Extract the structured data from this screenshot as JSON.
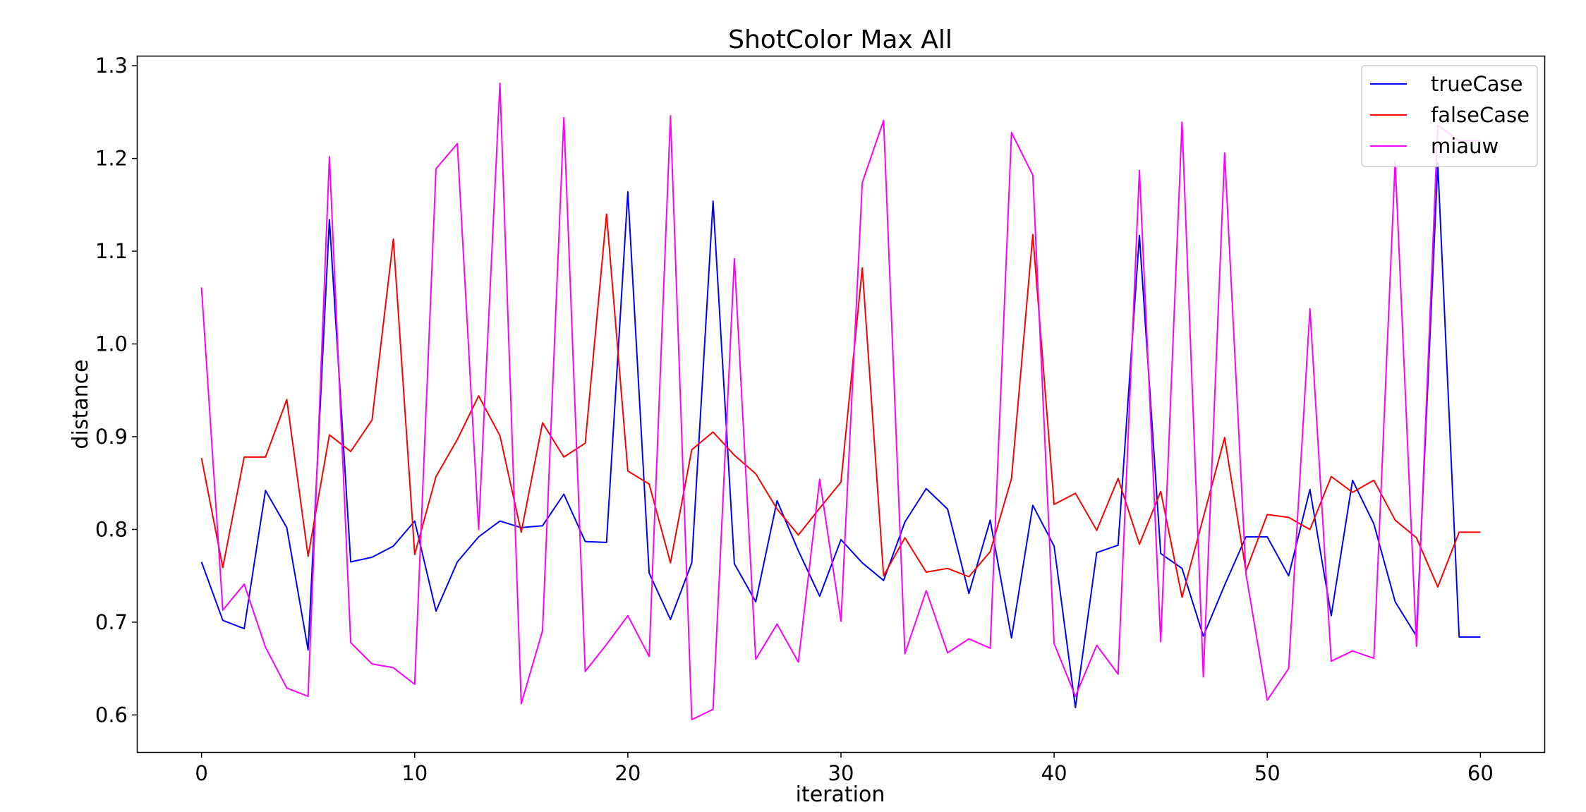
{
  "chart_data": {
    "type": "line",
    "title": "ShotColor Max All",
    "xlabel": "iteration",
    "ylabel": "distance",
    "xlim": [
      -3,
      63
    ],
    "ylim": [
      0.56,
      1.31
    ],
    "xticks": [
      0,
      10,
      20,
      30,
      40,
      50,
      60
    ],
    "yticks": [
      0.6,
      0.7,
      0.8,
      0.9,
      1.0,
      1.1,
      1.2,
      1.3
    ],
    "xtick_labels": [
      "0",
      "10",
      "20",
      "30",
      "40",
      "50",
      "60"
    ],
    "ytick_labels": [
      "0.6",
      "0.7",
      "0.8",
      "0.9",
      "1.0",
      "1.1",
      "1.2",
      "1.3"
    ],
    "grid": false,
    "legend_position": "top-right",
    "x": [
      0,
      1,
      2,
      3,
      4,
      5,
      6,
      7,
      8,
      9,
      10,
      11,
      12,
      13,
      14,
      15,
      16,
      17,
      18,
      19,
      20,
      21,
      22,
      23,
      24,
      25,
      26,
      27,
      28,
      29,
      30,
      31,
      32,
      33,
      34,
      35,
      36,
      37,
      38,
      39,
      40,
      41,
      42,
      43,
      44,
      45,
      46,
      47,
      48,
      49,
      50,
      51,
      52,
      53,
      54,
      55,
      56,
      57,
      58,
      59,
      60
    ],
    "series": [
      {
        "name": "trueCase",
        "color": "#0000ff",
        "values": [
          0.765,
          0.702,
          0.693,
          0.842,
          0.802,
          0.67,
          1.134,
          0.765,
          0.77,
          0.782,
          0.809,
          0.712,
          0.765,
          0.792,
          0.809,
          0.802,
          0.804,
          0.838,
          0.787,
          0.786,
          1.164,
          0.753,
          0.703,
          0.764,
          1.154,
          0.763,
          0.722,
          0.831,
          0.777,
          0.728,
          0.789,
          0.764,
          0.745,
          0.808,
          0.844,
          0.822,
          0.731,
          0.81,
          0.683,
          0.826,
          0.782,
          0.608,
          0.775,
          0.783,
          1.117,
          0.774,
          0.758,
          0.685,
          0.74,
          0.792,
          0.792,
          0.75,
          0.843,
          0.707,
          0.853,
          0.806,
          0.722,
          0.685,
          1.195,
          0.684,
          0.684
        ]
      },
      {
        "name": "falseCase",
        "color": "#ff0000",
        "values": [
          0.877,
          0.759,
          0.878,
          0.878,
          0.94,
          0.771,
          0.902,
          0.884,
          0.918,
          1.113,
          0.773,
          0.857,
          0.897,
          0.944,
          0.901,
          0.797,
          0.915,
          0.878,
          0.893,
          1.14,
          0.863,
          0.849,
          0.764,
          0.886,
          0.905,
          0.88,
          0.86,
          0.822,
          0.794,
          0.823,
          0.851,
          1.082,
          0.75,
          0.791,
          0.754,
          0.758,
          0.749,
          0.776,
          0.855,
          1.118,
          0.827,
          0.839,
          0.799,
          0.855,
          0.784,
          0.841,
          0.727,
          0.813,
          0.899,
          0.755,
          0.816,
          0.813,
          0.8,
          0.857,
          0.84,
          0.853,
          0.81,
          0.791,
          0.738,
          0.797,
          0.797
        ]
      },
      {
        "name": "miauw",
        "color": "#ff00ff",
        "values": [
          1.061,
          0.713,
          0.741,
          0.673,
          0.629,
          0.62,
          1.202,
          0.678,
          0.655,
          0.651,
          0.633,
          1.189,
          1.216,
          0.8,
          1.281,
          0.612,
          0.691,
          1.244,
          0.647,
          0.676,
          0.707,
          0.663,
          1.246,
          0.595,
          0.606,
          1.092,
          0.66,
          0.698,
          0.657,
          0.854,
          0.701,
          1.174,
          1.241,
          0.666,
          0.734,
          0.667,
          0.682,
          0.672,
          1.228,
          1.182,
          0.677,
          0.62,
          0.675,
          0.644,
          1.187,
          0.679,
          1.239,
          0.641,
          1.206,
          0.752,
          0.616,
          0.65,
          1.038,
          0.658,
          0.669,
          0.661,
          1.197,
          0.674,
          1.236,
          1.219,
          1.219
        ]
      }
    ]
  }
}
